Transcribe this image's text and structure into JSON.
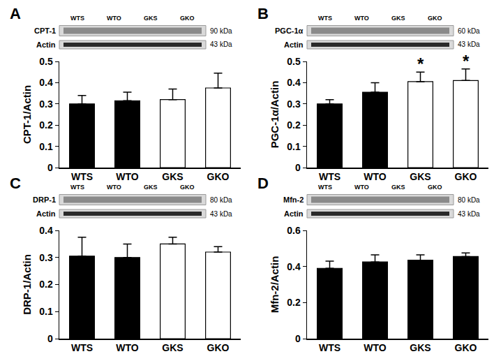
{
  "chart_data": [
    {
      "type": "bar",
      "title": "A",
      "categories": [
        "WTS",
        "WTO",
        "GKS",
        "GKO"
      ],
      "values": [
        0.3,
        0.315,
        0.32,
        0.375
      ],
      "errors": [
        0.04,
        0.04,
        0.05,
        0.07
      ],
      "colors": [
        "#000000",
        "#000000",
        "#ffffff",
        "#ffffff"
      ],
      "ylabel": "CPT-1/Actin",
      "ylim": [
        0,
        0.5
      ],
      "yticks": [
        0,
        0.1,
        0.2,
        0.3,
        0.4,
        0.5
      ],
      "blot": {
        "lanes": [
          "WTS",
          "WTO",
          "GKS",
          "GKO"
        ],
        "bands": [
          {
            "label": "CPT-1",
            "size": "90 kDa"
          },
          {
            "label": "Actin",
            "size": "43 kDa"
          }
        ]
      }
    },
    {
      "type": "bar",
      "title": "B",
      "categories": [
        "WTS",
        "WTO",
        "GKS",
        "GKO"
      ],
      "values": [
        0.3,
        0.355,
        0.405,
        0.41
      ],
      "errors": [
        0.02,
        0.045,
        0.045,
        0.055
      ],
      "colors": [
        "#000000",
        "#000000",
        "#ffffff",
        "#ffffff"
      ],
      "ylabel": "PGC-1α/Actin",
      "ylim": [
        0,
        0.5
      ],
      "yticks": [
        0,
        0.1,
        0.2,
        0.3,
        0.4,
        0.5
      ],
      "blot": {
        "lanes": [
          "WTS",
          "WTO",
          "GKS",
          "GKO"
        ],
        "bands": [
          {
            "label": "PGC-1α",
            "size": "60 kDa"
          },
          {
            "label": "Actin",
            "size": "43 kDa"
          }
        ]
      },
      "annotations": [
        {
          "text": "*",
          "category": "GKS"
        },
        {
          "text": "*",
          "category": "GKO"
        }
      ]
    },
    {
      "type": "bar",
      "title": "C",
      "categories": [
        "WTS",
        "WTO",
        "GKS",
        "GKO"
      ],
      "values": [
        0.305,
        0.3,
        0.35,
        0.32
      ],
      "errors": [
        0.07,
        0.05,
        0.025,
        0.02
      ],
      "colors": [
        "#000000",
        "#000000",
        "#ffffff",
        "#ffffff"
      ],
      "ylabel": "DRP-1/Actin",
      "ylim": [
        0,
        0.4
      ],
      "yticks": [
        0,
        0.1,
        0.2,
        0.3,
        0.4
      ],
      "blot": {
        "lanes": [
          "WTS",
          "WTO",
          "GKS",
          "GKO"
        ],
        "bands": [
          {
            "label": "DRP-1",
            "size": "80 kDa"
          },
          {
            "label": "Actin",
            "size": "43 kDa"
          }
        ]
      }
    },
    {
      "type": "bar",
      "title": "D",
      "categories": [
        "WTS",
        "WTO",
        "GKS",
        "GKO"
      ],
      "values": [
        0.39,
        0.425,
        0.435,
        0.455
      ],
      "errors": [
        0.04,
        0.04,
        0.03,
        0.02
      ],
      "colors": [
        "#000000",
        "#000000",
        "#000000",
        "#000000"
      ],
      "ylabel": "Mfn-2/Actin",
      "ylim": [
        0,
        0.6
      ],
      "yticks": [
        0,
        0.2,
        0.4,
        0.6
      ],
      "blot": {
        "lanes": [
          "WTS",
          "WTO",
          "GKS",
          "GKO"
        ],
        "bands": [
          {
            "label": "Mfn-2",
            "size": "80 kDa"
          },
          {
            "label": "Actin",
            "size": "43 kDa"
          }
        ]
      }
    }
  ]
}
